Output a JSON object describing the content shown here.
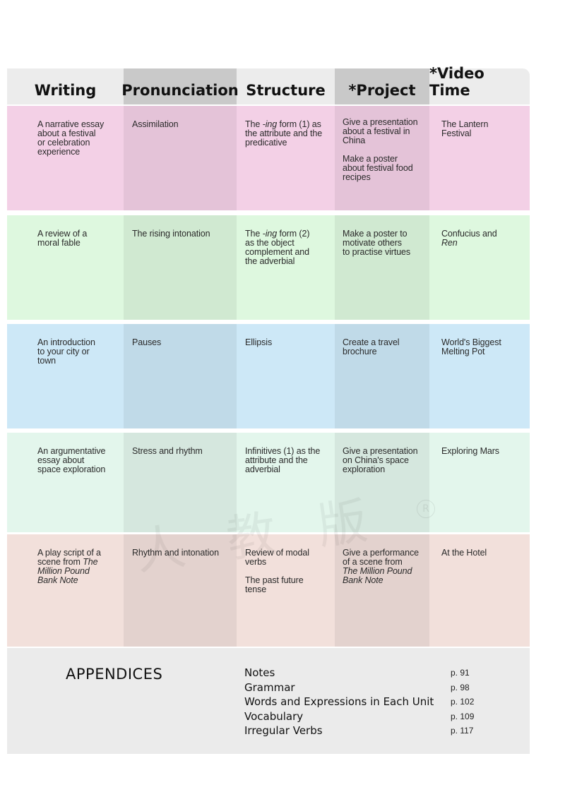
{
  "headers": [
    "Writing",
    "Pronunciation",
    "Structure",
    "*Project",
    "*Video Time"
  ],
  "rows": [
    {
      "writing": [
        "A narrative essay",
        "about a festival",
        "or celebration",
        "experience"
      ],
      "pronunciation": [
        "Assimilation"
      ],
      "structure": [
        "The -ing form (1) as",
        "the attribute and the",
        "predicative"
      ],
      "project": [
        "Give a presentation",
        "about a festival in",
        "China",
        "",
        "Make a poster",
        "about festival food",
        "recipes"
      ],
      "video": [
        "The Lantern",
        "Festival"
      ]
    },
    {
      "writing": [
        "A review of a",
        "moral fable"
      ],
      "pronunciation": [
        "The rising intonation"
      ],
      "structure": [
        "The -ing form (2)",
        "as the object",
        "complement and",
        "the adverbial"
      ],
      "project": [
        "Make a poster to",
        "motivate others",
        "to practise virtues"
      ],
      "video": [
        "Confucius and",
        "Ren"
      ]
    },
    {
      "writing": [
        "An introduction",
        "to your city or",
        "town"
      ],
      "pronunciation": [
        "Pauses"
      ],
      "structure": [
        "Ellipsis"
      ],
      "project": [
        "Create a travel",
        "brochure"
      ],
      "video": [
        "World's Biggest",
        "Melting Pot"
      ]
    },
    {
      "writing": [
        "An argumentative",
        "essay about",
        "space exploration"
      ],
      "pronunciation": [
        "Stress and rhythm"
      ],
      "structure": [
        "Infinitives (1) as the",
        "attribute and the",
        "adverbial"
      ],
      "project": [
        "Give a presentation",
        "on China's space",
        "exploration"
      ],
      "video": [
        "Exploring Mars"
      ]
    },
    {
      "writing": [
        "A play script of a",
        "scene from The",
        "Million Pound",
        "Bank Note"
      ],
      "pronunciation": [
        "Rhythm and intonation"
      ],
      "structure": [
        "Review of modal",
        "verbs",
        "",
        "The past future",
        "tense"
      ],
      "project": [
        "Give a performance",
        "of a scene from",
        "The Million Pound",
        "Bank Note"
      ],
      "video": [
        "At the Hotel"
      ]
    }
  ],
  "appendices": {
    "title": "APPENDICES",
    "items": [
      {
        "name": "Notes",
        "page": "p. 91"
      },
      {
        "name": "Grammar",
        "page": "p. 98"
      },
      {
        "name": "Words and Expressions in Each Unit",
        "page": "p. 102"
      },
      {
        "name": "Vocabulary",
        "page": "p. 109"
      },
      {
        "name": "Irregular Verbs",
        "page": "p. 117"
      }
    ]
  },
  "colors": {
    "pink": "#f3d0e6",
    "green": "#def8df",
    "blue": "#cde8f7",
    "mint": "#e3f6ec",
    "peach": "#f2e0db",
    "header": "#ececec",
    "header_dark": "#c9c9c9"
  }
}
